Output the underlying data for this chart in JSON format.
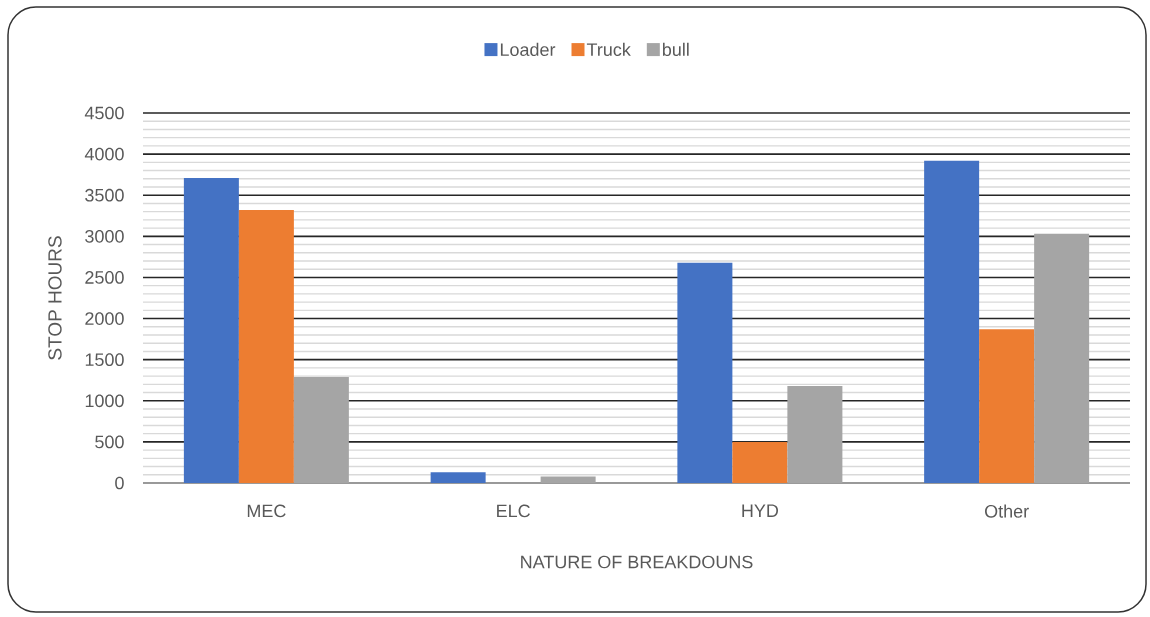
{
  "chart_data": {
    "type": "bar",
    "categories": [
      "MEC",
      "ELC",
      "HYD",
      "Other"
    ],
    "series": [
      {
        "name": "Loader",
        "color": "#4472c4",
        "values": [
          3710,
          130,
          2680,
          3920
        ]
      },
      {
        "name": "Truck",
        "color": "#ed7d31",
        "values": [
          3320,
          0,
          500,
          1870
        ]
      },
      {
        "name": "bull",
        "color": "#a5a5a5",
        "values": [
          1290,
          80,
          1180,
          3030
        ]
      }
    ],
    "xlabel": "NATURE OF BREAKDOUNS",
    "ylabel": "STOP HOURS",
    "ylim": [
      0,
      4500
    ],
    "yticks": [
      0,
      500,
      1000,
      1500,
      2000,
      2500,
      3000,
      3500,
      4000,
      4500
    ],
    "grid": "y",
    "legend": "top"
  }
}
